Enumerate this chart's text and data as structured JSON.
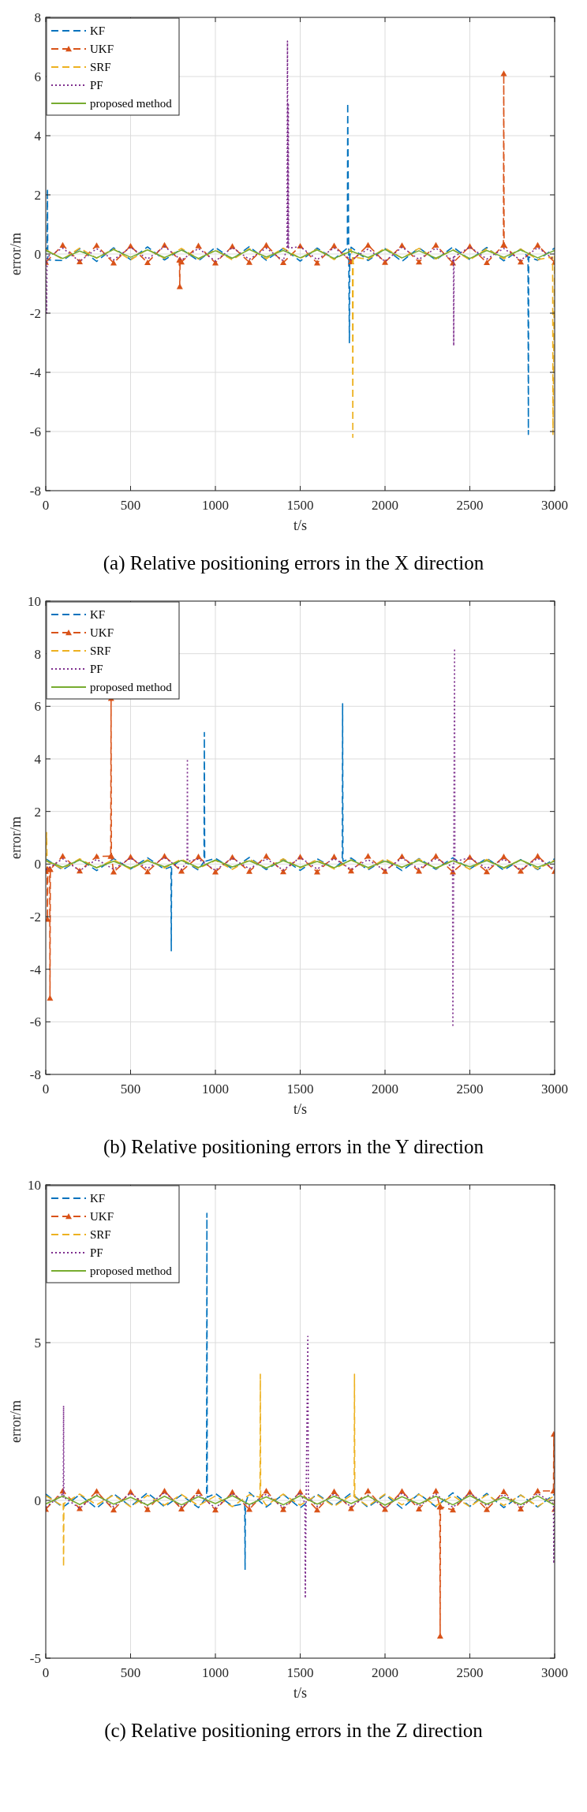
{
  "chart_data": [
    {
      "type": "line",
      "title": "(a) Relative positioning errors in the X direction",
      "xlabel": "t/s",
      "ylabel": "error/m",
      "xlim": [
        0,
        3000
      ],
      "xticks": [
        0,
        500,
        1000,
        1500,
        2000,
        2500,
        3000
      ],
      "ylim": [
        -8,
        8
      ],
      "yticks": [
        -8,
        -6,
        -4,
        -2,
        0,
        2,
        4,
        6,
        8
      ],
      "grid": true,
      "legend": "top left",
      "series": [
        {
          "name": "KF",
          "color": "#0072bd",
          "line_style": "dashed",
          "x": [
            0,
            8,
            10,
            12,
            100,
            200,
            300,
            400,
            500,
            600,
            700,
            800,
            900,
            1000,
            1100,
            1200,
            1300,
            1400,
            1500,
            1600,
            1700,
            1778,
            1780,
            1786,
            1790,
            1792,
            1800,
            1900,
            2000,
            2100,
            2200,
            2300,
            2400,
            2500,
            2600,
            2700,
            2800,
            2843,
            2845,
            2847,
            2900,
            3000
          ],
          "values": [
            0.2,
            0.1,
            2.2,
            -0.2,
            -0.22,
            0.18,
            -0.25,
            0.21,
            -0.19,
            0.24,
            -0.2,
            0.17,
            -0.23,
            0.22,
            -0.18,
            0.25,
            -0.21,
            0.19,
            -0.24,
            0.2,
            -0.17,
            0.2,
            5.1,
            0.1,
            -3.0,
            -0.1,
            0.23,
            -0.22,
            0.18,
            -0.25,
            0.21,
            -0.2,
            0.24,
            -0.19,
            0.22,
            -0.23,
            0.17,
            -0.1,
            -6.1,
            -0.1,
            -0.21,
            0.2
          ]
        },
        {
          "name": "UKF",
          "color": "#d95319",
          "line_style": "dashed",
          "marker": "triangle",
          "x": [
            0,
            100,
            200,
            300,
            400,
            500,
            600,
            700,
            788,
            790,
            792,
            800,
            900,
            1000,
            1100,
            1200,
            1300,
            1400,
            1500,
            1600,
            1700,
            1800,
            1900,
            2000,
            2100,
            2200,
            2300,
            2400,
            2500,
            2600,
            2698,
            2700,
            2702,
            2800,
            2900,
            3000
          ],
          "values": [
            -0.28,
            0.3,
            -0.26,
            0.29,
            -0.3,
            0.27,
            -0.29,
            0.3,
            -0.2,
            -1.1,
            -0.2,
            -0.27,
            0.28,
            -0.3,
            0.26,
            -0.28,
            0.3,
            -0.29,
            0.27,
            -0.3,
            0.28,
            -0.26,
            0.3,
            -0.28,
            0.29,
            -0.27,
            0.3,
            -0.3,
            0.26,
            -0.29,
            0.3,
            6.1,
            0.3,
            -0.27,
            0.3,
            -0.28
          ]
        },
        {
          "name": "SRF",
          "color": "#edb120",
          "line_style": "dashed",
          "x": [
            0,
            100,
            200,
            300,
            400,
            500,
            600,
            700,
            800,
            900,
            1000,
            1100,
            1200,
            1300,
            1400,
            1500,
            1600,
            1700,
            1800,
            1808,
            1810,
            1812,
            1900,
            2000,
            2100,
            2200,
            2300,
            2400,
            2500,
            2600,
            2700,
            2800,
            2900,
            2988,
            2990,
            3000
          ],
          "values": [
            0.15,
            -0.18,
            0.2,
            -0.14,
            0.17,
            -0.2,
            0.16,
            -0.15,
            0.19,
            -0.17,
            0.14,
            -0.2,
            0.18,
            -0.16,
            0.2,
            -0.15,
            0.17,
            -0.19,
            0.16,
            -0.1,
            -6.2,
            -0.1,
            -0.18,
            0.2,
            -0.14,
            0.19,
            -0.17,
            0.15,
            -0.2,
            0.18,
            -0.16,
            0.17,
            -0.19,
            -0.1,
            -6.1,
            0.15
          ]
        },
        {
          "name": "PF",
          "color": "#7e2f8e",
          "line_style": "dotted",
          "x": [
            0,
            5,
            8,
            100,
            200,
            300,
            400,
            500,
            600,
            700,
            800,
            900,
            1000,
            1100,
            1200,
            1300,
            1400,
            1422,
            1425,
            1428,
            1430,
            1432,
            1500,
            1600,
            1700,
            1800,
            1900,
            2000,
            2100,
            2200,
            2300,
            2400,
            2403,
            2405,
            2407,
            2500,
            2600,
            2700,
            2800,
            2900,
            3000
          ],
          "values": [
            -0.22,
            -2.0,
            -0.1,
            0.2,
            -0.25,
            0.18,
            -0.2,
            0.23,
            -0.17,
            0.25,
            -0.21,
            0.19,
            -0.24,
            0.22,
            -0.18,
            0.2,
            -0.23,
            0.2,
            7.2,
            0.2,
            5.1,
            0.2,
            0.25,
            -0.19,
            0.21,
            -0.2,
            0.17,
            -0.25,
            0.23,
            -0.18,
            0.2,
            -0.22,
            -0.1,
            -3.1,
            -0.1,
            0.24,
            -0.17,
            0.19,
            -0.21,
            0.22,
            -0.2
          ]
        },
        {
          "name": "proposed method",
          "color": "#77ac30",
          "line_style": "solid",
          "x": [
            0,
            100,
            200,
            300,
            400,
            500,
            600,
            700,
            800,
            900,
            1000,
            1100,
            1200,
            1300,
            1400,
            1500,
            1600,
            1700,
            1800,
            1900,
            2000,
            2100,
            2200,
            2300,
            2400,
            2500,
            2600,
            2700,
            2800,
            2900,
            3000
          ],
          "values": [
            0.12,
            -0.15,
            0.1,
            -0.13,
            0.15,
            -0.11,
            0.14,
            -0.12,
            0.13,
            -0.15,
            0.11,
            -0.14,
            0.15,
            -0.1,
            0.12,
            -0.13,
            0.14,
            -0.15,
            0.1,
            -0.12,
            0.15,
            -0.13,
            0.11,
            -0.14,
            0.13,
            -0.15,
            0.12,
            -0.11,
            0.14,
            -0.13,
            0.12
          ]
        }
      ]
    },
    {
      "type": "line",
      "title": "(b) Relative positioning errors in the Y direction",
      "xlabel": "t/s",
      "ylabel": "error/m",
      "xlim": [
        0,
        3000
      ],
      "xticks": [
        0,
        500,
        1000,
        1500,
        2000,
        2500,
        3000
      ],
      "ylim": [
        -8,
        10
      ],
      "yticks": [
        -8,
        -6,
        -4,
        -2,
        0,
        2,
        4,
        6,
        8,
        10
      ],
      "grid": true,
      "legend": "top left",
      "series": [
        {
          "name": "KF",
          "color": "#0072bd",
          "line_style": "dashed",
          "x": [
            0,
            100,
            200,
            300,
            400,
            500,
            600,
            700,
            738,
            740,
            742,
            800,
            900,
            933,
            935,
            937,
            1000,
            1100,
            1200,
            1300,
            1400,
            1500,
            1600,
            1700,
            1748,
            1750,
            1752,
            1800,
            1900,
            2000,
            2100,
            2200,
            2300,
            2400,
            2500,
            2600,
            2700,
            2800,
            2900,
            3000
          ],
          "values": [
            0.2,
            -0.22,
            0.18,
            -0.25,
            0.21,
            -0.19,
            0.24,
            -0.2,
            -0.1,
            -3.3,
            -0.1,
            0.17,
            -0.23,
            0.1,
            5.0,
            0.1,
            0.22,
            -0.18,
            0.25,
            -0.21,
            0.19,
            -0.24,
            0.2,
            -0.17,
            0.1,
            6.1,
            0.1,
            0.23,
            -0.22,
            0.18,
            -0.25,
            0.21,
            -0.2,
            0.24,
            -0.19,
            0.22,
            -0.23,
            0.17,
            -0.21,
            0.2
          ]
        },
        {
          "name": "UKF",
          "color": "#d95319",
          "line_style": "dashed",
          "marker": "triangle",
          "x": [
            0,
            8,
            10,
            12,
            23,
            25,
            27,
            100,
            200,
            300,
            383,
            385,
            387,
            400,
            500,
            600,
            700,
            800,
            900,
            1000,
            1100,
            1200,
            1300,
            1400,
            1500,
            1600,
            1700,
            1800,
            1900,
            2000,
            2100,
            2200,
            2300,
            2400,
            2500,
            2600,
            2700,
            2800,
            2900,
            3000
          ],
          "values": [
            -0.28,
            -0.2,
            -2.1,
            -0.2,
            -0.2,
            -5.1,
            -0.2,
            0.3,
            -0.26,
            0.29,
            0.3,
            6.3,
            0.3,
            -0.3,
            0.27,
            -0.29,
            0.3,
            -0.27,
            0.28,
            -0.3,
            0.26,
            -0.28,
            0.3,
            -0.29,
            0.27,
            -0.3,
            0.28,
            -0.26,
            0.3,
            -0.28,
            0.29,
            -0.27,
            0.3,
            -0.3,
            0.26,
            -0.29,
            0.28,
            -0.27,
            0.3,
            -0.28
          ]
        },
        {
          "name": "SRF",
          "color": "#edb120",
          "line_style": "dashed",
          "x": [
            0,
            5,
            8,
            100,
            200,
            300,
            400,
            500,
            600,
            700,
            800,
            900,
            1000,
            1100,
            1200,
            1300,
            1400,
            1500,
            1600,
            1700,
            1800,
            1900,
            2000,
            2100,
            2200,
            2300,
            2400,
            2500,
            2600,
            2700,
            2800,
            2900,
            3000
          ],
          "values": [
            0.15,
            1.2,
            0.1,
            -0.18,
            0.2,
            -0.14,
            0.17,
            -0.2,
            0.16,
            -0.15,
            0.19,
            -0.17,
            0.14,
            -0.2,
            0.18,
            -0.16,
            0.2,
            -0.15,
            0.17,
            -0.19,
            0.16,
            -0.18,
            0.2,
            -0.14,
            0.19,
            -0.17,
            0.15,
            -0.2,
            0.18,
            -0.16,
            0.17,
            -0.19,
            0.15
          ]
        },
        {
          "name": "PF",
          "color": "#7e2f8e",
          "line_style": "dotted",
          "x": [
            0,
            100,
            200,
            300,
            400,
            500,
            600,
            700,
            800,
            833,
            835,
            837,
            900,
            1000,
            1100,
            1200,
            1300,
            1400,
            1500,
            1600,
            1700,
            1800,
            1900,
            2000,
            2100,
            2200,
            2300,
            2398,
            2400,
            2405,
            2410,
            2412,
            2500,
            2600,
            2700,
            2800,
            2900,
            3000
          ],
          "values": [
            -0.22,
            0.2,
            -0.25,
            0.18,
            -0.2,
            0.23,
            -0.17,
            0.25,
            -0.21,
            0.1,
            4.0,
            0.1,
            0.19,
            -0.24,
            0.22,
            -0.18,
            0.2,
            -0.23,
            0.25,
            -0.19,
            0.21,
            -0.2,
            0.17,
            -0.25,
            0.23,
            -0.18,
            0.2,
            -0.1,
            -6.2,
            0.1,
            8.2,
            0.1,
            0.24,
            -0.17,
            0.19,
            -0.21,
            0.22,
            -0.2
          ]
        },
        {
          "name": "proposed method",
          "color": "#77ac30",
          "line_style": "solid",
          "x": [
            0,
            100,
            200,
            300,
            400,
            500,
            600,
            700,
            800,
            900,
            1000,
            1100,
            1200,
            1300,
            1400,
            1500,
            1600,
            1700,
            1800,
            1900,
            2000,
            2100,
            2200,
            2300,
            2400,
            2500,
            2600,
            2700,
            2800,
            2900,
            3000
          ],
          "values": [
            0.13,
            -0.12,
            0.15,
            -0.14,
            0.11,
            -0.15,
            0.12,
            -0.1,
            0.14,
            -0.13,
            0.15,
            -0.11,
            0.12,
            -0.15,
            0.13,
            -0.12,
            0.1,
            -0.14,
            0.15,
            -0.13,
            0.11,
            -0.12,
            0.14,
            -0.15,
            0.12,
            -0.1,
            0.13,
            -0.14,
            0.15,
            -0.12,
            0.11
          ]
        }
      ]
    },
    {
      "type": "line",
      "title": "(c) Relative positioning errors in the Z direction",
      "xlabel": "t/s",
      "ylabel": "error/m",
      "xlim": [
        0,
        3000
      ],
      "xticks": [
        0,
        500,
        1000,
        1500,
        2000,
        2500,
        3000
      ],
      "ylim": [
        -5,
        10
      ],
      "yticks": [
        -5,
        0,
        5,
        10
      ],
      "grid": true,
      "legend": "top left",
      "series": [
        {
          "name": "KF",
          "color": "#0072bd",
          "line_style": "dashed",
          "x": [
            0,
            100,
            200,
            300,
            400,
            500,
            600,
            700,
            800,
            900,
            948,
            950,
            952,
            1000,
            1100,
            1173,
            1175,
            1177,
            1200,
            1300,
            1400,
            1500,
            1600,
            1700,
            1800,
            1900,
            2000,
            2100,
            2200,
            2300,
            2400,
            2500,
            2600,
            2700,
            2800,
            2900,
            3000
          ],
          "values": [
            0.2,
            -0.22,
            0.18,
            -0.25,
            0.21,
            -0.19,
            0.24,
            -0.2,
            0.17,
            -0.23,
            0.1,
            9.1,
            0.1,
            0.22,
            -0.18,
            -0.1,
            -2.2,
            -0.1,
            0.25,
            -0.21,
            0.19,
            -0.24,
            0.2,
            -0.17,
            0.23,
            -0.22,
            0.18,
            -0.25,
            0.21,
            -0.2,
            0.24,
            -0.19,
            0.22,
            -0.23,
            0.17,
            -0.21,
            0.2
          ]
        },
        {
          "name": "UKF",
          "color": "#d95319",
          "line_style": "dashed",
          "marker": "triangle",
          "x": [
            0,
            100,
            200,
            300,
            400,
            500,
            600,
            700,
            800,
            900,
            1000,
            1100,
            1200,
            1300,
            1400,
            1500,
            1600,
            1700,
            1800,
            1900,
            2000,
            2100,
            2200,
            2300,
            2323,
            2325,
            2327,
            2400,
            2500,
            2600,
            2700,
            2800,
            2900,
            2993,
            2995,
            3000
          ],
          "values": [
            -0.28,
            0.3,
            -0.26,
            0.29,
            -0.3,
            0.27,
            -0.29,
            0.3,
            -0.27,
            0.28,
            -0.3,
            0.26,
            -0.28,
            0.3,
            -0.29,
            0.27,
            -0.3,
            0.28,
            -0.26,
            0.3,
            -0.28,
            0.29,
            -0.27,
            0.3,
            -0.2,
            -4.3,
            -0.2,
            -0.3,
            0.26,
            -0.29,
            0.28,
            -0.27,
            0.3,
            0.3,
            2.1,
            -0.28
          ]
        },
        {
          "name": "SRF",
          "color": "#edb120",
          "line_style": "dashed",
          "x": [
            0,
            100,
            103,
            105,
            107,
            200,
            300,
            400,
            500,
            600,
            700,
            800,
            900,
            1000,
            1100,
            1200,
            1263,
            1265,
            1267,
            1300,
            1400,
            1500,
            1600,
            1700,
            1800,
            1818,
            1820,
            1822,
            1900,
            2000,
            2100,
            2200,
            2300,
            2400,
            2500,
            2600,
            2700,
            2800,
            2900,
            3000
          ],
          "values": [
            0.15,
            -0.18,
            -0.1,
            -2.1,
            -0.1,
            0.2,
            -0.14,
            0.17,
            -0.2,
            0.16,
            -0.15,
            0.19,
            -0.17,
            0.14,
            -0.2,
            0.18,
            0.1,
            4.0,
            0.1,
            -0.16,
            0.2,
            -0.15,
            0.17,
            -0.19,
            0.16,
            0.1,
            4.0,
            0.1,
            -0.18,
            0.2,
            -0.14,
            0.19,
            -0.17,
            0.15,
            -0.2,
            0.18,
            -0.16,
            0.17,
            -0.19,
            0.15
          ]
        },
        {
          "name": "PF",
          "color": "#7e2f8e",
          "line_style": "dotted",
          "x": [
            0,
            100,
            103,
            105,
            107,
            200,
            300,
            400,
            500,
            600,
            700,
            800,
            900,
            1000,
            1100,
            1200,
            1300,
            1400,
            1500,
            1528,
            1530,
            1535,
            1545,
            1548,
            1600,
            1700,
            1800,
            1900,
            2000,
            2100,
            2200,
            2300,
            2400,
            2500,
            2600,
            2700,
            2800,
            2900,
            2993,
            2995,
            3000
          ],
          "values": [
            -0.22,
            0.2,
            0.1,
            3.0,
            0.1,
            -0.25,
            0.18,
            -0.2,
            0.23,
            -0.17,
            0.25,
            -0.21,
            0.19,
            -0.24,
            0.22,
            -0.18,
            0.2,
            -0.23,
            0.25,
            -0.1,
            -3.1,
            0.1,
            5.2,
            0.1,
            -0.19,
            0.21,
            -0.2,
            0.17,
            -0.25,
            0.23,
            -0.18,
            0.2,
            -0.22,
            0.24,
            -0.17,
            0.19,
            -0.21,
            0.22,
            -0.1,
            -2.0,
            -0.2
          ]
        },
        {
          "name": "proposed method",
          "color": "#77ac30",
          "line_style": "solid",
          "x": [
            0,
            100,
            200,
            300,
            400,
            500,
            600,
            700,
            800,
            900,
            1000,
            1100,
            1200,
            1300,
            1400,
            1500,
            1600,
            1700,
            1800,
            1900,
            2000,
            2100,
            2200,
            2300,
            2400,
            2500,
            2600,
            2700,
            2800,
            2900,
            3000
          ],
          "values": [
            -0.11,
            0.14,
            -0.13,
            0.15,
            -0.12,
            0.1,
            -0.15,
            0.13,
            -0.14,
            0.12,
            -0.1,
            0.15,
            -0.13,
            0.11,
            -0.14,
            0.15,
            -0.12,
            0.13,
            -0.1,
            0.14,
            -0.15,
            0.12,
            -0.11,
            0.13,
            -0.14,
            0.15,
            -0.12,
            0.1,
            -0.13,
            0.14,
            -0.15
          ]
        }
      ]
    }
  ]
}
